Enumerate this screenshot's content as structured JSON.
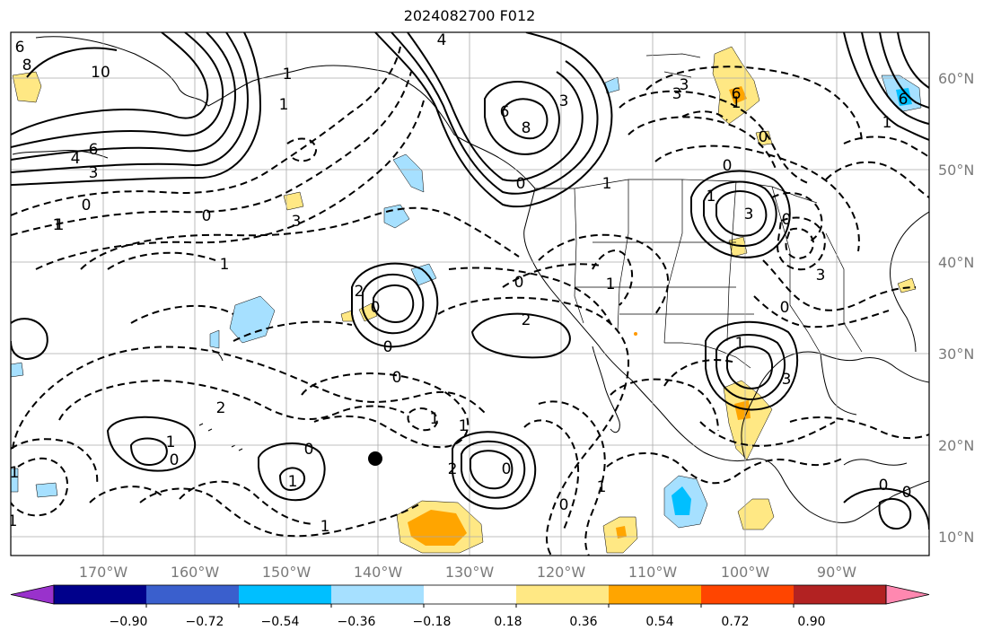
{
  "title": "2024082700 F012",
  "map": {
    "lon_labels": [
      "170°W",
      "160°W",
      "150°W",
      "140°W",
      "130°W",
      "120°W",
      "110°W",
      "100°W",
      "90°W"
    ],
    "lat_labels": [
      "60°N",
      "50°N",
      "40°N",
      "30°N",
      "20°N",
      "10°N"
    ],
    "grid": true,
    "contour_labels": [
      "6",
      "8",
      "10",
      "6",
      "4",
      "3",
      "0",
      "1",
      "3",
      "1",
      "1",
      "4",
      "6",
      "8",
      "3",
      "3",
      "3",
      "6",
      "0",
      "1",
      "3",
      "0",
      "3",
      "0",
      "1",
      "0",
      "2",
      "0",
      "0",
      "2",
      "0",
      "1",
      "1",
      "2",
      "0",
      "1",
      "0",
      "1",
      "2",
      "0",
      "1",
      "1",
      "0",
      "1",
      "1",
      "1",
      "3",
      "6",
      "1",
      "0",
      "0",
      "1",
      "0",
      "1",
      "0",
      "1",
      "1",
      "0"
    ]
  },
  "colorbar": {
    "ticks": [
      "−0.90",
      "−0.72",
      "−0.54",
      "−0.36",
      "−0.18",
      "0.18",
      "0.36",
      "0.54",
      "0.72",
      "0.90"
    ],
    "colors": [
      "#9932cc",
      "#00008b",
      "#3a5fcd",
      "#00bfff",
      "#a6e0ff",
      "#ffffff",
      "#ffe884",
      "#ffa500",
      "#ff4500",
      "#b22222",
      "#ff88b0"
    ]
  }
}
